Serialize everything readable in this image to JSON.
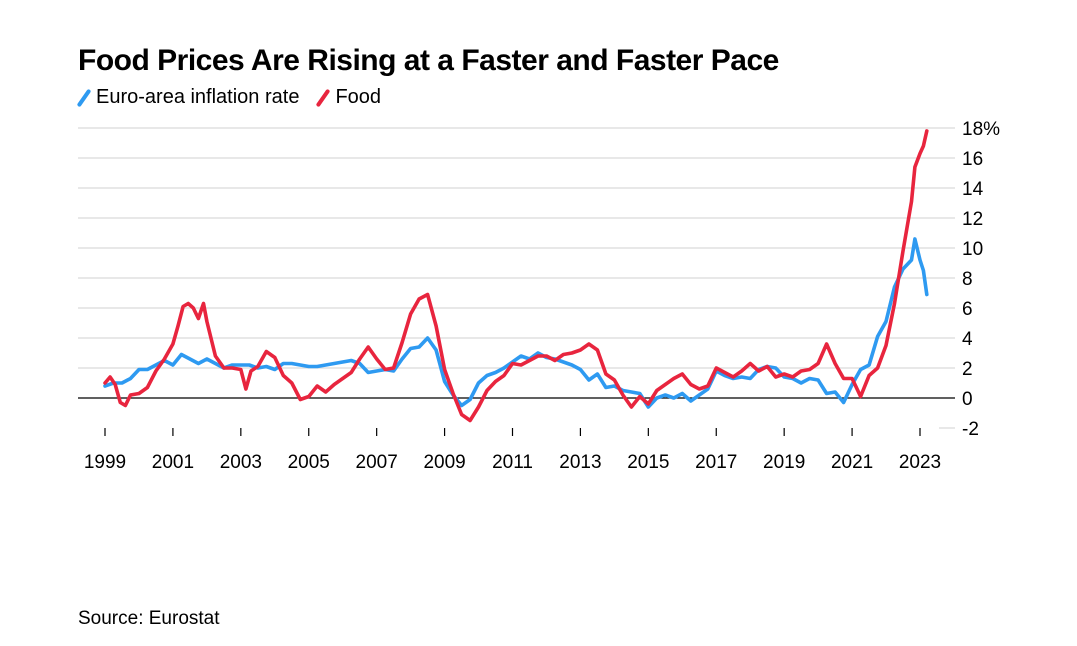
{
  "title": "Food Prices Are Rising at a Faster and Faster Pace",
  "source": "Source: Eurostat",
  "legend": [
    {
      "label": "Euro-area inflation rate",
      "color": "#2e9af1"
    },
    {
      "label": "Food",
      "color": "#e8253e"
    }
  ],
  "chart_data": {
    "type": "line",
    "title": "Food Prices Are Rising at a Faster and Faster Pace",
    "xlabel": "",
    "ylabel": "",
    "xlim": [
      1999,
      2023.25
    ],
    "ylim": [
      -2,
      18
    ],
    "x_ticks": [
      1999,
      2001,
      2003,
      2005,
      2007,
      2009,
      2011,
      2013,
      2015,
      2017,
      2019,
      2021,
      2023
    ],
    "x_tick_labels": [
      "1999",
      "2001",
      "2003",
      "2005",
      "2007",
      "2009",
      "2011",
      "2013",
      "2015",
      "2017",
      "2019",
      "2021",
      "2023"
    ],
    "y_ticks": [
      18,
      16,
      14,
      12,
      10,
      8,
      6,
      4,
      2,
      0,
      -2
    ],
    "y_tick_labels": [
      "18%",
      "16",
      "14",
      "12",
      "10",
      "8",
      "6",
      "4",
      "2",
      "0",
      "-2"
    ],
    "grid": "horizontal",
    "zero_line": true,
    "legend_position": "top-left",
    "series": [
      {
        "name": "Euro-area inflation rate",
        "color": "#2e9af1",
        "points": [
          [
            1999.0,
            0.8
          ],
          [
            1999.25,
            1.0
          ],
          [
            1999.5,
            1.0
          ],
          [
            1999.75,
            1.3
          ],
          [
            2000.0,
            1.9
          ],
          [
            2000.25,
            1.9
          ],
          [
            2000.5,
            2.2
          ],
          [
            2000.75,
            2.5
          ],
          [
            2001.0,
            2.2
          ],
          [
            2001.25,
            2.9
          ],
          [
            2001.5,
            2.6
          ],
          [
            2001.75,
            2.3
          ],
          [
            2002.0,
            2.6
          ],
          [
            2002.25,
            2.3
          ],
          [
            2002.5,
            2.0
          ],
          [
            2002.75,
            2.2
          ],
          [
            2003.0,
            2.2
          ],
          [
            2003.25,
            2.2
          ],
          [
            2003.5,
            2.0
          ],
          [
            2003.75,
            2.1
          ],
          [
            2004.0,
            1.9
          ],
          [
            2004.25,
            2.3
          ],
          [
            2004.5,
            2.3
          ],
          [
            2004.75,
            2.2
          ],
          [
            2005.0,
            2.1
          ],
          [
            2005.25,
            2.1
          ],
          [
            2005.5,
            2.2
          ],
          [
            2005.75,
            2.3
          ],
          [
            2006.0,
            2.4
          ],
          [
            2006.25,
            2.5
          ],
          [
            2006.5,
            2.3
          ],
          [
            2006.75,
            1.7
          ],
          [
            2007.0,
            1.8
          ],
          [
            2007.25,
            1.9
          ],
          [
            2007.5,
            1.8
          ],
          [
            2007.75,
            2.6
          ],
          [
            2008.0,
            3.3
          ],
          [
            2008.25,
            3.4
          ],
          [
            2008.5,
            4.0
          ],
          [
            2008.75,
            3.2
          ],
          [
            2009.0,
            1.1
          ],
          [
            2009.25,
            0.2
          ],
          [
            2009.5,
            -0.5
          ],
          [
            2009.75,
            -0.1
          ],
          [
            2010.0,
            1.0
          ],
          [
            2010.25,
            1.5
          ],
          [
            2010.5,
            1.7
          ],
          [
            2010.75,
            2.0
          ],
          [
            2011.0,
            2.4
          ],
          [
            2011.25,
            2.8
          ],
          [
            2011.5,
            2.6
          ],
          [
            2011.75,
            3.0
          ],
          [
            2012.0,
            2.7
          ],
          [
            2012.25,
            2.6
          ],
          [
            2012.5,
            2.4
          ],
          [
            2012.75,
            2.2
          ],
          [
            2013.0,
            1.9
          ],
          [
            2013.25,
            1.2
          ],
          [
            2013.5,
            1.6
          ],
          [
            2013.75,
            0.7
          ],
          [
            2014.0,
            0.8
          ],
          [
            2014.25,
            0.5
          ],
          [
            2014.5,
            0.4
          ],
          [
            2014.75,
            0.3
          ],
          [
            2015.0,
            -0.6
          ],
          [
            2015.25,
            0.0
          ],
          [
            2015.5,
            0.2
          ],
          [
            2015.75,
            0.0
          ],
          [
            2016.0,
            0.3
          ],
          [
            2016.25,
            -0.2
          ],
          [
            2016.5,
            0.2
          ],
          [
            2016.75,
            0.6
          ],
          [
            2017.0,
            1.8
          ],
          [
            2017.25,
            1.5
          ],
          [
            2017.5,
            1.3
          ],
          [
            2017.75,
            1.4
          ],
          [
            2018.0,
            1.3
          ],
          [
            2018.25,
            1.9
          ],
          [
            2018.5,
            2.1
          ],
          [
            2018.75,
            2.0
          ],
          [
            2019.0,
            1.4
          ],
          [
            2019.25,
            1.3
          ],
          [
            2019.5,
            1.0
          ],
          [
            2019.75,
            1.3
          ],
          [
            2020.0,
            1.2
          ],
          [
            2020.25,
            0.3
          ],
          [
            2020.5,
            0.4
          ],
          [
            2020.75,
            -0.3
          ],
          [
            2021.0,
            0.9
          ],
          [
            2021.25,
            1.9
          ],
          [
            2021.5,
            2.2
          ],
          [
            2021.75,
            4.1
          ],
          [
            2022.0,
            5.1
          ],
          [
            2022.25,
            7.4
          ],
          [
            2022.5,
            8.6
          ],
          [
            2022.75,
            9.2
          ],
          [
            2022.85,
            10.6
          ],
          [
            2023.0,
            9.2
          ],
          [
            2023.1,
            8.5
          ],
          [
            2023.2,
            6.9
          ]
        ]
      },
      {
        "name": "Food",
        "color": "#e8253e",
        "points": [
          [
            1999.0,
            1.0
          ],
          [
            1999.15,
            1.4
          ],
          [
            1999.3,
            0.9
          ],
          [
            1999.45,
            -0.3
          ],
          [
            1999.6,
            -0.5
          ],
          [
            1999.75,
            0.2
          ],
          [
            2000.0,
            0.3
          ],
          [
            2000.25,
            0.7
          ],
          [
            2000.5,
            1.8
          ],
          [
            2000.75,
            2.6
          ],
          [
            2001.0,
            3.6
          ],
          [
            2001.15,
            4.8
          ],
          [
            2001.3,
            6.1
          ],
          [
            2001.45,
            6.3
          ],
          [
            2001.6,
            6.0
          ],
          [
            2001.75,
            5.3
          ],
          [
            2001.9,
            6.3
          ],
          [
            2002.0,
            5.1
          ],
          [
            2002.25,
            2.8
          ],
          [
            2002.5,
            2.0
          ],
          [
            2002.75,
            2.0
          ],
          [
            2003.0,
            1.9
          ],
          [
            2003.15,
            0.6
          ],
          [
            2003.3,
            1.8
          ],
          [
            2003.5,
            2.1
          ],
          [
            2003.75,
            3.1
          ],
          [
            2004.0,
            2.7
          ],
          [
            2004.25,
            1.5
          ],
          [
            2004.5,
            1.0
          ],
          [
            2004.75,
            -0.1
          ],
          [
            2005.0,
            0.1
          ],
          [
            2005.25,
            0.8
          ],
          [
            2005.5,
            0.4
          ],
          [
            2005.75,
            0.9
          ],
          [
            2006.0,
            1.3
          ],
          [
            2006.25,
            1.7
          ],
          [
            2006.5,
            2.6
          ],
          [
            2006.75,
            3.4
          ],
          [
            2007.0,
            2.6
          ],
          [
            2007.25,
            1.9
          ],
          [
            2007.5,
            2.0
          ],
          [
            2007.75,
            3.7
          ],
          [
            2008.0,
            5.6
          ],
          [
            2008.25,
            6.6
          ],
          [
            2008.5,
            6.9
          ],
          [
            2008.75,
            4.8
          ],
          [
            2009.0,
            1.9
          ],
          [
            2009.25,
            0.3
          ],
          [
            2009.5,
            -1.1
          ],
          [
            2009.75,
            -1.5
          ],
          [
            2010.0,
            -0.6
          ],
          [
            2010.25,
            0.5
          ],
          [
            2010.5,
            1.1
          ],
          [
            2010.75,
            1.5
          ],
          [
            2011.0,
            2.3
          ],
          [
            2011.25,
            2.2
          ],
          [
            2011.5,
            2.5
          ],
          [
            2011.75,
            2.8
          ],
          [
            2012.0,
            2.8
          ],
          [
            2012.25,
            2.5
          ],
          [
            2012.5,
            2.9
          ],
          [
            2012.75,
            3.0
          ],
          [
            2013.0,
            3.2
          ],
          [
            2013.25,
            3.6
          ],
          [
            2013.5,
            3.2
          ],
          [
            2013.75,
            1.6
          ],
          [
            2014.0,
            1.2
          ],
          [
            2014.25,
            0.2
          ],
          [
            2014.5,
            -0.6
          ],
          [
            2014.75,
            0.1
          ],
          [
            2015.0,
            -0.4
          ],
          [
            2015.25,
            0.5
          ],
          [
            2015.5,
            0.9
          ],
          [
            2015.75,
            1.3
          ],
          [
            2016.0,
            1.6
          ],
          [
            2016.25,
            0.9
          ],
          [
            2016.5,
            0.6
          ],
          [
            2016.75,
            0.8
          ],
          [
            2017.0,
            2.0
          ],
          [
            2017.25,
            1.7
          ],
          [
            2017.5,
            1.4
          ],
          [
            2017.75,
            1.8
          ],
          [
            2018.0,
            2.3
          ],
          [
            2018.25,
            1.8
          ],
          [
            2018.5,
            2.1
          ],
          [
            2018.75,
            1.4
          ],
          [
            2019.0,
            1.6
          ],
          [
            2019.25,
            1.4
          ],
          [
            2019.5,
            1.8
          ],
          [
            2019.75,
            1.9
          ],
          [
            2020.0,
            2.3
          ],
          [
            2020.25,
            3.6
          ],
          [
            2020.5,
            2.3
          ],
          [
            2020.75,
            1.3
          ],
          [
            2021.0,
            1.3
          ],
          [
            2021.25,
            0.1
          ],
          [
            2021.5,
            1.5
          ],
          [
            2021.75,
            2.0
          ],
          [
            2022.0,
            3.5
          ],
          [
            2022.25,
            6.3
          ],
          [
            2022.5,
            9.8
          ],
          [
            2022.75,
            13.1
          ],
          [
            2022.85,
            15.4
          ],
          [
            2023.0,
            16.3
          ],
          [
            2023.1,
            16.8
          ],
          [
            2023.2,
            17.8
          ]
        ]
      }
    ]
  }
}
